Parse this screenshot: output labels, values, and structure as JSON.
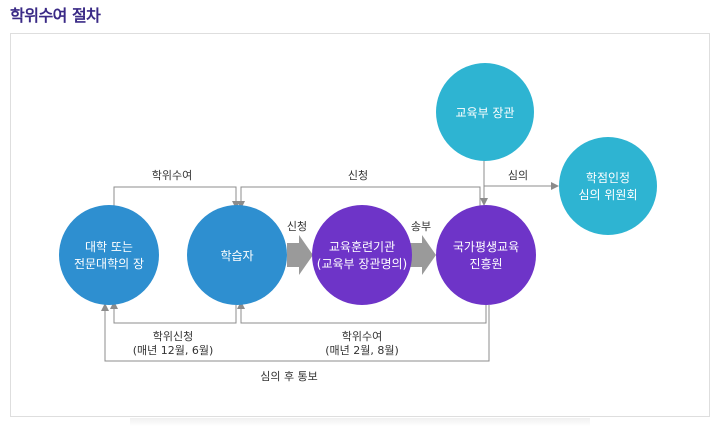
{
  "title": "학위수여 절차",
  "nodes": {
    "university": {
      "line1": "대학 또는",
      "line2": "전문대학의 장",
      "color": "#2e8fd0"
    },
    "learner": {
      "line1": "학습자",
      "color": "#2e8fd0"
    },
    "institution": {
      "line1": "교육훈련기관",
      "line2": "(교육부 장관명의)",
      "color": "#6e34c8"
    },
    "nile": {
      "line1": "국가평생교육",
      "line2": "진흥원",
      "color": "#6e34c8"
    },
    "minister": {
      "line1": "교육부 장관",
      "color": "#2eb4d2"
    },
    "committee": {
      "line1": "학점인정",
      "line2": "심의 위원회",
      "color": "#2eb4d2"
    }
  },
  "edges": {
    "degree_award_top": "학위수여",
    "apply_top": "신청",
    "apply_arrow": "신청",
    "send_arrow": "송부",
    "review": "심의",
    "degree_apply_bottom": {
      "line1": "학위신청",
      "line2": "(매년 12월, 6월)"
    },
    "degree_award_bottom": {
      "line1": "학위수여",
      "line2": "(매년 2월, 8월)"
    },
    "notify": "심의 후 통보"
  },
  "colors": {
    "title": "#3a2a86",
    "arrow_fill": "#9a9a9a",
    "line": "#8c8c8c"
  }
}
